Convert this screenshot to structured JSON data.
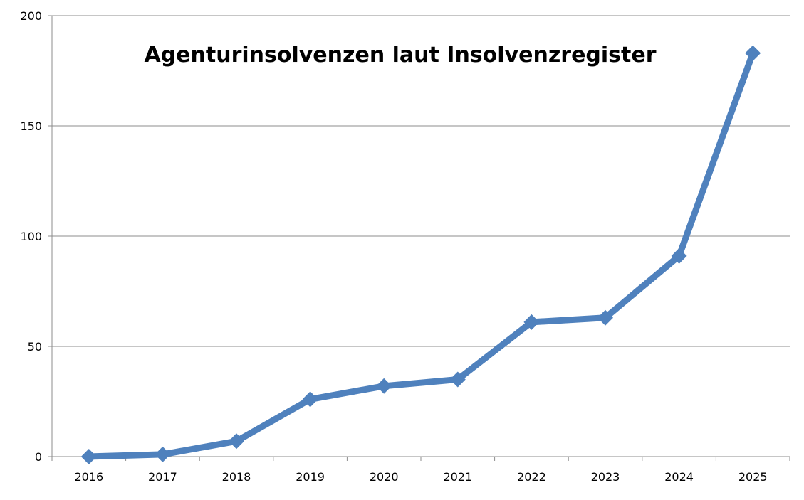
{
  "chart_data": {
    "type": "line",
    "title": "Agenturinsolvenzen laut Insolvenzregister",
    "xlabel": "",
    "ylabel": "",
    "categories": [
      "2016",
      "2017",
      "2018",
      "2019",
      "2020",
      "2021",
      "2022",
      "2023",
      "2024",
      "2025"
    ],
    "series": [
      {
        "values": [
          0,
          1,
          7,
          26,
          32,
          35,
          61,
          63,
          91,
          183
        ]
      }
    ],
    "ylim": [
      0,
      200
    ],
    "yticks": [
      0,
      50,
      100,
      150,
      200
    ],
    "grid": true,
    "legend": "none",
    "marker": "diamond",
    "colors": {
      "series": "#4f81bd",
      "grid": "#8c8c8c",
      "axis": "#8c8c8c",
      "text": "#000000",
      "background": "#ffffff"
    }
  }
}
